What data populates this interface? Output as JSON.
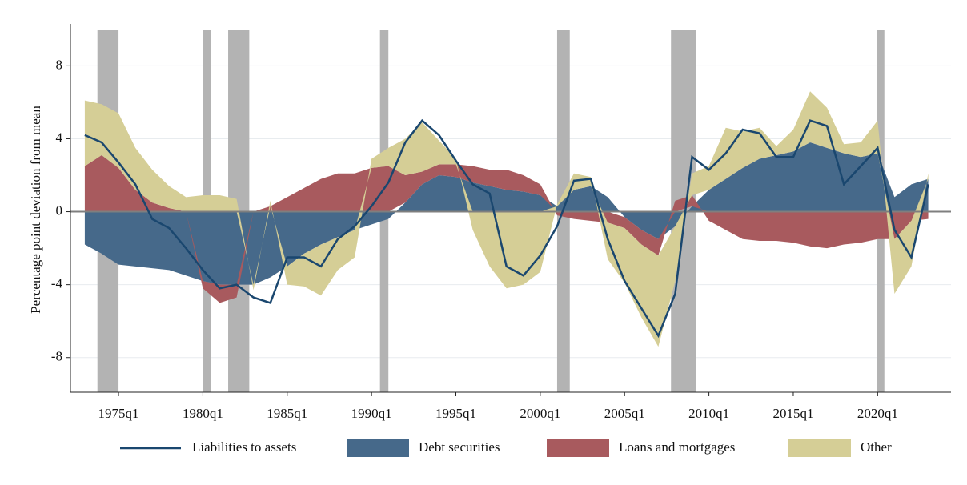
{
  "chart_data": {
    "type": "stacked_area_line",
    "y_label": "Percentage point deviation from mean",
    "x": [
      1973,
      1974,
      1975,
      1976,
      1977,
      1978,
      1979,
      1980,
      1981,
      1982,
      1983,
      1984,
      1985,
      1986,
      1987,
      1988,
      1989,
      1990,
      1991,
      1992,
      1993,
      1994,
      1995,
      1996,
      1997,
      1998,
      1999,
      2000,
      2001,
      2002,
      2003,
      2004,
      2005,
      2006,
      2007,
      2008,
      2009,
      2010,
      2011,
      2012,
      2013,
      2014,
      2015,
      2016,
      2017,
      2018,
      2019,
      2020,
      2021,
      2022,
      2023
    ],
    "series": [
      {
        "name": "Debt securities",
        "color": "#46698a",
        "kind": "area",
        "values": [
          -1.8,
          -2.3,
          -2.9,
          -3.0,
          -3.1,
          -3.2,
          -3.5,
          -3.8,
          -4.0,
          -4.0,
          -4.0,
          -3.6,
          -3.0,
          -2.3,
          -1.8,
          -1.4,
          -1.0,
          -0.7,
          -0.4,
          0.5,
          1.5,
          2.0,
          1.9,
          1.6,
          1.4,
          1.2,
          1.1,
          0.9,
          0.3,
          1.2,
          1.4,
          0.8,
          -0.3,
          -1.0,
          -1.5,
          -0.8,
          0.3,
          1.2,
          1.8,
          2.4,
          2.9,
          3.1,
          3.3,
          3.8,
          3.5,
          3.2,
          3.0,
          3.2,
          0.8,
          1.5,
          1.8
        ]
      },
      {
        "name": "Loans and mortgages",
        "color": "#a85a5e",
        "kind": "area",
        "values": [
          2.5,
          3.1,
          2.4,
          1.2,
          0.5,
          0.2,
          0,
          -0.4,
          -1.0,
          -0.7,
          0,
          0.3,
          0.8,
          1.3,
          1.8,
          2.1,
          2.1,
          2.4,
          2.5,
          1.5,
          0.7,
          0.6,
          0.7,
          0.9,
          0.9,
          1.1,
          0.9,
          0.6,
          -0.2,
          -0.4,
          -0.5,
          -0.6,
          -0.6,
          -0.8,
          -0.9,
          0.6,
          0.6,
          -0.5,
          -1.0,
          -1.5,
          -1.6,
          -1.6,
          -1.7,
          -1.9,
          -2.0,
          -1.8,
          -1.7,
          -1.5,
          -1.5,
          -0.5,
          -0.4
        ]
      },
      {
        "name": "Other",
        "color": "#d5ce96",
        "kind": "area",
        "values": [
          3.6,
          2.8,
          3.0,
          2.3,
          1.8,
          1.2,
          0.8,
          0.9,
          0.9,
          0.7,
          -0.3,
          0.3,
          -1.0,
          -1.8,
          -2.8,
          -1.8,
          -1.5,
          0.5,
          1.0,
          2.0,
          2.7,
          1.3,
          0.3,
          -1.0,
          -3.0,
          -4.2,
          -4.0,
          -3.3,
          0.1,
          0.9,
          0.5,
          -2.0,
          -3.0,
          -4.0,
          -5.0,
          -3.0,
          1.2,
          1.3,
          2.8,
          2.0,
          1.7,
          0.5,
          1.2,
          2.8,
          2.2,
          0.5,
          0.8,
          1.8,
          -3.0,
          -2.5,
          0.3
        ]
      },
      {
        "name": "Liabilities to assets",
        "color": "#1a476f",
        "kind": "line",
        "values": [
          4.2,
          3.8,
          2.7,
          1.5,
          -0.4,
          -0.9,
          -2.0,
          -3.2,
          -4.2,
          -4.0,
          -4.7,
          -5.0,
          -2.5,
          -2.5,
          -3.0,
          -1.5,
          -0.8,
          0.3,
          1.6,
          3.8,
          5.0,
          4.2,
          2.8,
          1.5,
          1.0,
          -3.0,
          -3.5,
          -2.4,
          -0.8,
          1.7,
          1.8,
          -1.5,
          -3.8,
          -5.3,
          -6.8,
          -4.5,
          3.0,
          2.3,
          3.2,
          4.5,
          4.3,
          3.0,
          3.0,
          5.0,
          4.7,
          1.5,
          2.5,
          3.5,
          -1.0,
          -2.5,
          1.5
        ]
      }
    ],
    "recessions": [
      [
        1973.75,
        1975.0
      ],
      [
        1980.0,
        1980.5
      ],
      [
        1981.5,
        1982.75
      ],
      [
        1990.5,
        1991.0
      ],
      [
        2001.0,
        2001.75
      ],
      [
        2007.75,
        2009.25
      ],
      [
        2019.95,
        2020.4
      ]
    ],
    "recession_color": "#b3b3b3",
    "legend_order": [
      3,
      0,
      1,
      2
    ],
    "xlim": [
      1972.15,
      2024.35
    ],
    "xticks": [
      {
        "value": 1975,
        "label": "1975q1"
      },
      {
        "value": 1980,
        "label": "1980q1"
      },
      {
        "value": 1985,
        "label": "1985q1"
      },
      {
        "value": 1990,
        "label": "1990q1"
      },
      {
        "value": 1995,
        "label": "1995q1"
      },
      {
        "value": 2000,
        "label": "2000q1"
      },
      {
        "value": 2005,
        "label": "2005q1"
      },
      {
        "value": 2010,
        "label": "2010q1"
      },
      {
        "value": 2015,
        "label": "2015q1"
      },
      {
        "value": 2020,
        "label": "2020q1"
      }
    ],
    "ylim": [
      -9.9,
      10.3
    ],
    "yticks": [
      -8,
      -4,
      0,
      4,
      8
    ],
    "grid": true
  }
}
